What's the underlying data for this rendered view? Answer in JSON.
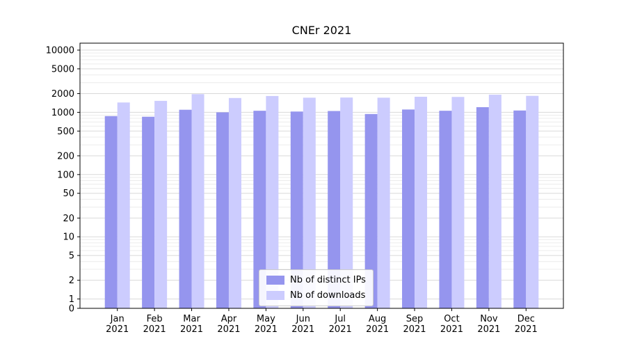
{
  "chart_data": {
    "type": "bar",
    "title": "CNEr 2021",
    "x_months": [
      "Jan",
      "Feb",
      "Mar",
      "Apr",
      "May",
      "Jun",
      "Jul",
      "Aug",
      "Sep",
      "Oct",
      "Nov",
      "Dec"
    ],
    "x_year": "2021",
    "y_scale": "symlog",
    "ylim": [
      0,
      10000
    ],
    "y_ticks": [
      0,
      1,
      2,
      5,
      10,
      20,
      50,
      100,
      200,
      500,
      1000,
      2000,
      5000,
      10000
    ],
    "grid": "horizontal, log minor gridlines",
    "legend_position": "lower-center-inside",
    "colors": {
      "distinct_ips": "#9595ee",
      "downloads": "#ccccfe",
      "grid_major": "#d9d9d9",
      "grid_minor": "#ececec",
      "axis": "#000000"
    },
    "series": [
      {
        "name": "Nb of distinct IPs",
        "color": "#9595ee",
        "values": [
          870,
          850,
          1100,
          1000,
          1060,
          1030,
          1050,
          940,
          1110,
          1060,
          1210,
          1070
        ]
      },
      {
        "name": "Nb of downloads",
        "color": "#ccccfe",
        "values": [
          1440,
          1530,
          1960,
          1700,
          1830,
          1720,
          1730,
          1720,
          1780,
          1770,
          1920,
          1840
        ]
      }
    ]
  }
}
